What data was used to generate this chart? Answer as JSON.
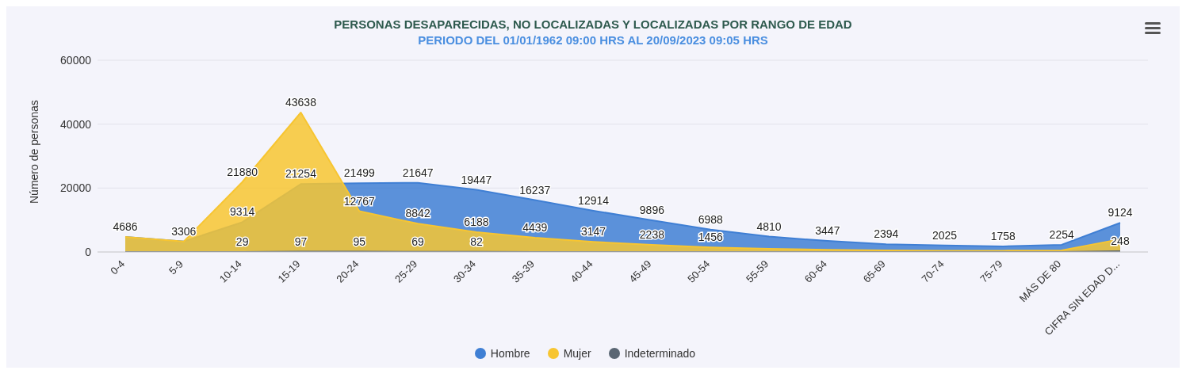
{
  "chart_data": {
    "type": "area",
    "title": "PERSONAS DESAPARECIDAS, NO LOCALIZADAS Y LOCALIZADAS POR RANGO DE EDAD",
    "subtitle": "PERIODO DEL 01/01/1962 09:00 HRS AL 20/09/2023 09:05 HRS",
    "ylabel": "Número de personas",
    "categories": [
      "0-4",
      "5-9",
      "10-14",
      "15-19",
      "20-24",
      "25-29",
      "30-34",
      "35-39",
      "40-44",
      "45-49",
      "50-54",
      "55-59",
      "60-64",
      "65-69",
      "70-74",
      "75-79",
      "MÁS DE 80",
      "CIFRA SIN EDAD D..."
    ],
    "series": [
      {
        "name": "Hombre",
        "color": "#3f7fd4",
        "values": [
          4686,
          3306,
          9314,
          21254,
          21499,
          21647,
          19447,
          16237,
          12914,
          9896,
          6988,
          4810,
          3447,
          2394,
          2025,
          1758,
          2254,
          9124
        ],
        "value_labels": [
          "4686",
          "3306",
          "9314",
          "21254",
          "21499",
          "21647",
          "19447",
          "16237",
          "12914",
          "9896",
          "6988",
          "4810",
          "3447",
          "2394",
          "2025",
          "1758",
          "2254",
          "9124"
        ]
      },
      {
        "name": "Mujer",
        "color": "#f7c531",
        "values": [
          4700,
          3300,
          21880,
          43638,
          12767,
          8842,
          6188,
          4439,
          3147,
          2238,
          1456,
          1000,
          700,
          500,
          400,
          400,
          500,
          4000
        ],
        "value_labels": [
          null,
          null,
          "21880",
          "43638",
          "12767",
          "8842",
          "6188",
          "4439",
          "3147",
          "2238",
          "1456",
          null,
          null,
          null,
          null,
          null,
          null,
          null
        ]
      },
      {
        "name": "Indeterminado",
        "color": "#5a6673",
        "values": [
          0,
          0,
          29,
          97,
          95,
          69,
          82,
          0,
          0,
          0,
          0,
          0,
          0,
          0,
          0,
          0,
          0,
          248
        ],
        "value_labels": [
          null,
          null,
          "29",
          "97",
          "95",
          "69",
          "82",
          null,
          null,
          null,
          null,
          null,
          null,
          null,
          null,
          null,
          null,
          "248"
        ]
      }
    ],
    "ylim": [
      0,
      60000
    ],
    "yticks": [
      0,
      20000,
      40000,
      60000
    ],
    "grid": "y",
    "legend": "bottom",
    "marker": "none"
  }
}
